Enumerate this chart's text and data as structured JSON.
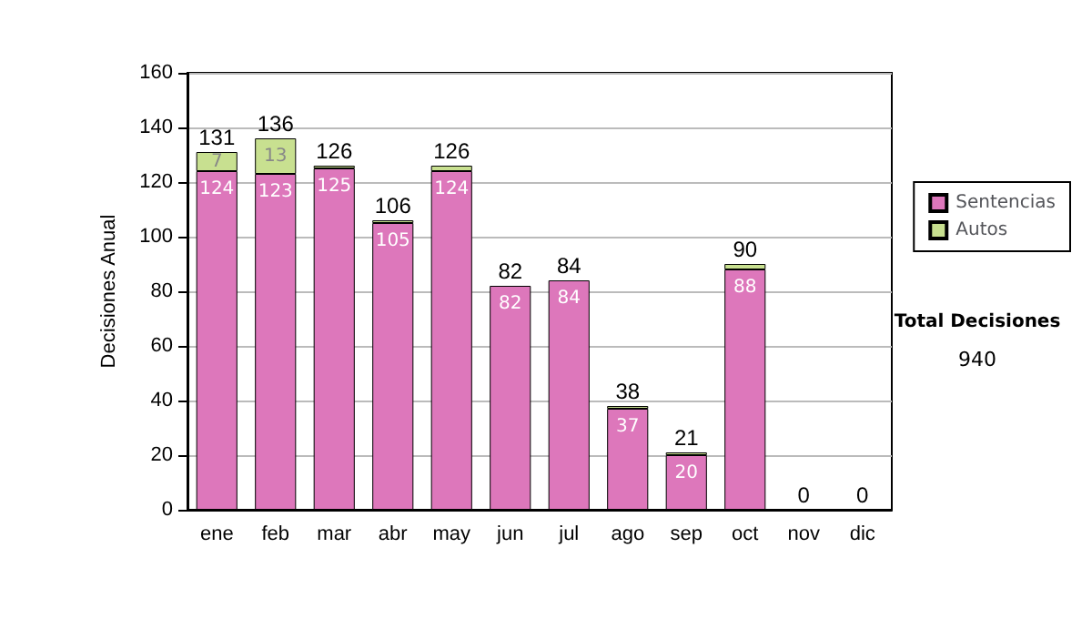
{
  "chart_data": {
    "type": "bar",
    "stacked": true,
    "ylabel": "Decisiones Anual",
    "categories": [
      "ene",
      "feb",
      "mar",
      "abr",
      "may",
      "jun",
      "jul",
      "ago",
      "sep",
      "oct",
      "nov",
      "dic"
    ],
    "series": [
      {
        "name": "Sentencias",
        "color": "#dd77bb",
        "values": [
          124,
          123,
          125,
          105,
          124,
          82,
          84,
          37,
          20,
          88,
          0,
          0
        ],
        "value_labels": [
          "124",
          "123",
          "125",
          "105",
          "124",
          "82",
          "84",
          "37",
          "20",
          "88",
          null,
          null
        ]
      },
      {
        "name": "Autos",
        "color": "#c8e090",
        "values": [
          7,
          13,
          1,
          1,
          2,
          0,
          0,
          1,
          1,
          2,
          0,
          0
        ],
        "value_labels": [
          "7",
          "13",
          null,
          null,
          null,
          null,
          null,
          null,
          null,
          null,
          null,
          null
        ]
      }
    ],
    "totals": [
      "131",
      "136",
      "126",
      "106",
      "126",
      "82",
      "84",
      "38",
      "21",
      "90",
      "0",
      "0"
    ],
    "ylim": [
      0,
      160
    ],
    "yticks": [
      0,
      20,
      40,
      60,
      80,
      100,
      120,
      140,
      160
    ],
    "grid": "y",
    "legend": "right",
    "annotations": [
      "Total Decisiones",
      "940"
    ]
  }
}
